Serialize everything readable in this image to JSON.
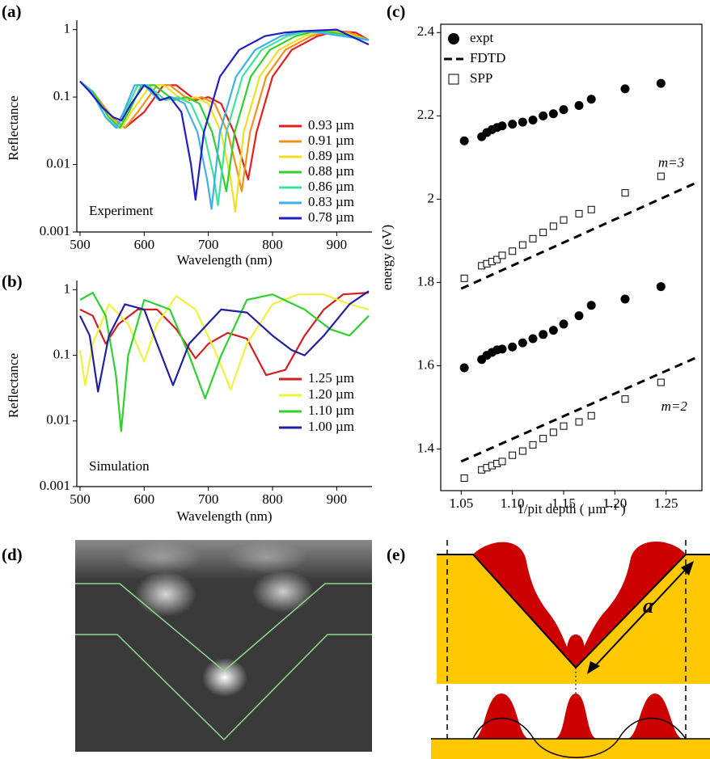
{
  "figure": {
    "panel_labels": [
      "(a)",
      "(b)",
      "(c)",
      "(d)",
      "(e)"
    ],
    "e_length_label": "a"
  },
  "chart_data": [
    {
      "type": "line",
      "log_y": true,
      "xlabel": "Wavelength (nm)",
      "ylabel": "Reflectance",
      "annotation": "Experiment",
      "xlim": [
        495,
        955
      ],
      "xticks": [
        500,
        600,
        700,
        800,
        900
      ],
      "ylim": [
        0.001,
        1.2
      ],
      "yticks": [
        0.001,
        0.01,
        0.1,
        1
      ],
      "series": [
        {
          "name": "0.93 µm",
          "color": "#e02020",
          "x": [
            500,
            520,
            550,
            570,
            600,
            630,
            650,
            680,
            700,
            720,
            740,
            755,
            762,
            775,
            800,
            830,
            870,
            900,
            930,
            950
          ],
          "values": [
            0.17,
            0.12,
            0.05,
            0.035,
            0.06,
            0.15,
            0.15,
            0.09,
            0.1,
            0.08,
            0.03,
            0.01,
            0.006,
            0.03,
            0.2,
            0.5,
            0.8,
            0.95,
            0.9,
            0.7
          ]
        },
        {
          "name": "0.91 µm",
          "color": "#f09020",
          "x": [
            500,
            520,
            550,
            570,
            590,
            620,
            640,
            670,
            690,
            710,
            730,
            745,
            752,
            765,
            790,
            820,
            860,
            890,
            920,
            950
          ],
          "values": [
            0.17,
            0.12,
            0.05,
            0.035,
            0.06,
            0.15,
            0.15,
            0.09,
            0.1,
            0.08,
            0.03,
            0.008,
            0.004,
            0.03,
            0.2,
            0.5,
            0.8,
            0.95,
            0.9,
            0.7
          ]
        },
        {
          "name": "0.89 µm",
          "color": "#f0e020",
          "x": [
            500,
            520,
            545,
            565,
            580,
            610,
            630,
            660,
            680,
            700,
            720,
            735,
            742,
            755,
            780,
            810,
            850,
            880,
            910,
            950
          ],
          "values": [
            0.17,
            0.12,
            0.05,
            0.035,
            0.06,
            0.15,
            0.15,
            0.09,
            0.1,
            0.08,
            0.03,
            0.006,
            0.002,
            0.03,
            0.2,
            0.5,
            0.8,
            0.95,
            0.9,
            0.7
          ]
        },
        {
          "name": "0.88 µm",
          "color": "#30d030",
          "x": [
            500,
            520,
            545,
            562,
            576,
            596,
            616,
            646,
            666,
            686,
            706,
            721,
            728,
            741,
            766,
            796,
            836,
            866,
            896,
            950
          ],
          "values": [
            0.17,
            0.12,
            0.05,
            0.035,
            0.06,
            0.15,
            0.15,
            0.09,
            0.1,
            0.08,
            0.03,
            0.008,
            0.004,
            0.03,
            0.2,
            0.5,
            0.8,
            0.95,
            0.9,
            0.7
          ]
        },
        {
          "name": "0.86 µm",
          "color": "#40e0a0",
          "x": [
            500,
            518,
            540,
            558,
            570,
            590,
            605,
            633,
            653,
            673,
            693,
            708,
            715,
            728,
            753,
            783,
            823,
            853,
            883,
            950
          ],
          "values": [
            0.17,
            0.12,
            0.05,
            0.035,
            0.06,
            0.15,
            0.15,
            0.09,
            0.1,
            0.08,
            0.03,
            0.007,
            0.0025,
            0.03,
            0.2,
            0.5,
            0.8,
            0.95,
            0.9,
            0.7
          ]
        },
        {
          "name": "0.83 µm",
          "color": "#40b0e8",
          "x": [
            500,
            518,
            540,
            556,
            568,
            585,
            600,
            623,
            643,
            663,
            683,
            698,
            705,
            718,
            743,
            773,
            813,
            843,
            873,
            950
          ],
          "values": [
            0.17,
            0.12,
            0.05,
            0.035,
            0.06,
            0.15,
            0.15,
            0.09,
            0.1,
            0.08,
            0.03,
            0.006,
            0.0022,
            0.03,
            0.2,
            0.5,
            0.8,
            0.95,
            0.9,
            0.7
          ]
        },
        {
          "name": "0.78 µm",
          "color": "#2020c0",
          "x": [
            500,
            515,
            535,
            552,
            565,
            580,
            600,
            610,
            625,
            640,
            658,
            673,
            680,
            693,
            718,
            748,
            788,
            818,
            848,
            900,
            950
          ],
          "values": [
            0.17,
            0.12,
            0.07,
            0.05,
            0.045,
            0.08,
            0.15,
            0.13,
            0.09,
            0.1,
            0.06,
            0.01,
            0.003,
            0.03,
            0.2,
            0.5,
            0.8,
            0.9,
            0.95,
            1.0,
            0.6
          ]
        }
      ]
    },
    {
      "type": "line",
      "log_y": true,
      "xlabel": "Wavelength (nm)",
      "ylabel": "Reflectance",
      "annotation": "Simulation",
      "xlim": [
        495,
        955
      ],
      "xticks": [
        500,
        600,
        700,
        800,
        900
      ],
      "ylim": [
        0.001,
        1.2
      ],
      "yticks": [
        0.001,
        0.01,
        0.1,
        1
      ],
      "series": [
        {
          "name": "1.25 µm",
          "color": "#d02020",
          "x": [
            500,
            520,
            540,
            560,
            590,
            620,
            650,
            680,
            700,
            730,
            760,
            790,
            820,
            850,
            880,
            910,
            950
          ],
          "values": [
            0.5,
            0.4,
            0.15,
            0.3,
            0.5,
            0.5,
            0.25,
            0.09,
            0.15,
            0.22,
            0.18,
            0.05,
            0.06,
            0.2,
            0.5,
            0.85,
            0.9
          ]
        },
        {
          "name": "1.20 µm",
          "color": "#f0f040",
          "x": [
            500,
            508,
            520,
            545,
            575,
            600,
            620,
            650,
            680,
            710,
            735,
            760,
            800,
            840,
            880,
            920,
            950
          ],
          "values": [
            0.12,
            0.035,
            0.15,
            0.6,
            0.3,
            0.08,
            0.3,
            0.8,
            0.5,
            0.12,
            0.03,
            0.15,
            0.6,
            0.85,
            0.85,
            0.6,
            0.5
          ]
        },
        {
          "name": "1.10 µm",
          "color": "#30d030",
          "x": [
            500,
            520,
            540,
            556,
            564,
            575,
            600,
            640,
            670,
            695,
            720,
            760,
            800,
            850,
            890,
            920,
            950
          ],
          "values": [
            0.7,
            0.9,
            0.4,
            0.05,
            0.007,
            0.1,
            0.7,
            0.5,
            0.1,
            0.022,
            0.1,
            0.7,
            0.85,
            0.5,
            0.25,
            0.2,
            0.4
          ]
        },
        {
          "name": "1.00 µm",
          "color": "#2020a0",
          "x": [
            500,
            515,
            528,
            545,
            570,
            600,
            620,
            645,
            670,
            720,
            760,
            800,
            830,
            850,
            880,
            920,
            950
          ],
          "values": [
            0.4,
            0.2,
            0.028,
            0.2,
            0.6,
            0.5,
            0.15,
            0.035,
            0.15,
            0.5,
            0.45,
            0.2,
            0.12,
            0.1,
            0.2,
            0.6,
            0.95
          ]
        }
      ]
    },
    {
      "type": "scatter",
      "xlabel": "1/pit depth ( µm⁻¹ )",
      "ylabel": "energy (eV)",
      "xlim": [
        1.03,
        1.285
      ],
      "xticks": [
        {
          "value": 1.05,
          "label": "1.05"
        },
        {
          "value": 1.1,
          "label": "1.10"
        },
        {
          "value": 1.15,
          "label": "1.15"
        },
        {
          "value": 1.2,
          "label": "1.20"
        },
        {
          "value": 1.25,
          "label": "1.25"
        }
      ],
      "ylim": [
        1.3,
        2.42
      ],
      "yticks": [
        1.4,
        1.6,
        1.8,
        2.0,
        2.2,
        2.4
      ],
      "annotations": [
        {
          "text": "m=3",
          "x": 1.255,
          "y": 2.085
        },
        {
          "text": "m=2",
          "x": 1.258,
          "y": 1.5
        }
      ],
      "series": [
        {
          "name": "expt",
          "color": "#000000",
          "marker": "circle",
          "x": [
            1.053,
            1.07,
            1.075,
            1.08,
            1.085,
            1.09,
            1.1,
            1.11,
            1.12,
            1.13,
            1.14,
            1.15,
            1.165,
            1.177,
            1.21,
            1.245,
            1.053,
            1.07,
            1.075,
            1.08,
            1.085,
            1.09,
            1.1,
            1.11,
            1.12,
            1.13,
            1.14,
            1.15,
            1.165,
            1.177,
            1.21,
            1.245
          ],
          "values": [
            2.14,
            2.15,
            2.16,
            2.167,
            2.172,
            2.176,
            2.18,
            2.185,
            2.19,
            2.2,
            2.205,
            2.215,
            2.225,
            2.24,
            2.265,
            2.278,
            1.595,
            1.615,
            1.625,
            1.632,
            1.638,
            1.64,
            1.645,
            1.655,
            1.665,
            1.675,
            1.685,
            1.7,
            1.72,
            1.745,
            1.76,
            1.79
          ]
        },
        {
          "name": "FDTD",
          "color": "#000000",
          "style": "dashed",
          "x": [
            1.05,
            1.28,
            null,
            1.05,
            1.28
          ],
          "values": [
            1.785,
            2.04,
            null,
            1.37,
            1.62
          ]
        },
        {
          "name": "SPP",
          "color": "#000000",
          "marker": "square",
          "x": [
            1.053,
            1.07,
            1.075,
            1.08,
            1.085,
            1.09,
            1.1,
            1.11,
            1.12,
            1.13,
            1.14,
            1.15,
            1.165,
            1.177,
            1.21,
            1.245,
            1.053,
            1.07,
            1.075,
            1.08,
            1.085,
            1.09,
            1.1,
            1.11,
            1.12,
            1.13,
            1.14,
            1.15,
            1.165,
            1.177,
            1.21,
            1.245
          ],
          "values": [
            1.81,
            1.84,
            1.845,
            1.85,
            1.855,
            1.865,
            1.875,
            1.89,
            1.905,
            1.92,
            1.935,
            1.95,
            1.965,
            1.975,
            2.015,
            2.055,
            1.33,
            1.35,
            1.355,
            1.36,
            1.365,
            1.37,
            1.385,
            1.395,
            1.41,
            1.425,
            1.44,
            1.455,
            1.465,
            1.48,
            1.52,
            1.56
          ]
        }
      ]
    }
  ]
}
